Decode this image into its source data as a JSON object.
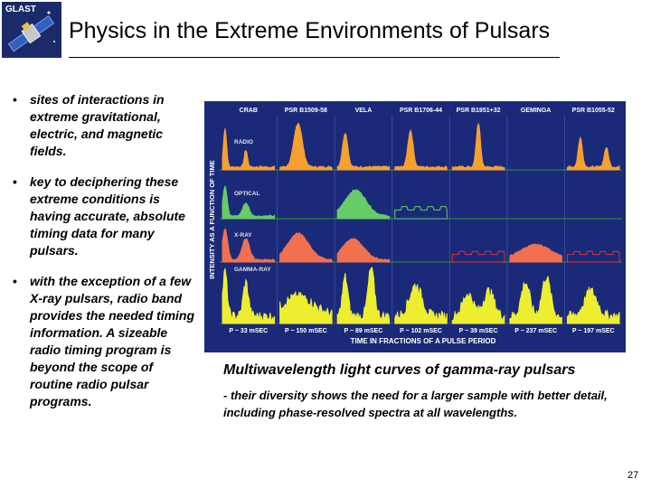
{
  "slide": {
    "logo_text": "GLAST",
    "title": "Physics in the Extreme Environments of Pulsars",
    "bullets": [
      {
        "text": "sites of interactions in extreme gravitational, electric, and magnetic fields."
      },
      {
        "text": "key to deciphering these extreme conditions is having accurate, absolute timing data for many pulsars."
      },
      {
        "text": "with the exception of a few X-ray pulsars, radio band provides the needed timing information. A sizeable radio timing program is beyond the scope of routine radio pulsar programs."
      }
    ],
    "caption_title": "Multiwavelength light curves of gamma-ray pulsars",
    "caption_body": "- their diversity shows the need for a larger sample with better detail, including phase-resolved spectra at all wavelengths.",
    "page_number": "27"
  },
  "figure": {
    "colors": {
      "background": "#1a2a78",
      "grid": "#3a4a9a",
      "separator": "#2a9a2a",
      "radio": "#f5a030",
      "optical": "#66cc66",
      "xray": "#f07050",
      "gamma": "#eeee30",
      "label": "#ffffff",
      "grey_label": "#e0e0e0"
    },
    "y_axis_label": "INTENSITY AS A FUNCTION OF TIME",
    "x_axis_label": "TIME IN FRACTIONS OF A PULSE PERIOD",
    "band_labels": [
      "RADIO",
      "OPTICAL",
      "X-RAY",
      "GAMMA-RAY"
    ],
    "pulsars": [
      {
        "name": "CRAB",
        "period": "P ~ 33 mSEC"
      },
      {
        "name": "PSR B1509-58",
        "period": "P ~ 150 mSEC"
      },
      {
        "name": "VELA",
        "period": "P ~ 89 mSEC"
      },
      {
        "name": "PSR B1706-44",
        "period": "P ~ 102 mSEC"
      },
      {
        "name": "PSR B1951+32",
        "period": "P ~ 39 mSEC"
      },
      {
        "name": "GEMINGA",
        "period": "P ~ 237 mSEC"
      },
      {
        "name": "PSR B1055-52",
        "period": "P ~ 197 mSEC"
      }
    ]
  }
}
